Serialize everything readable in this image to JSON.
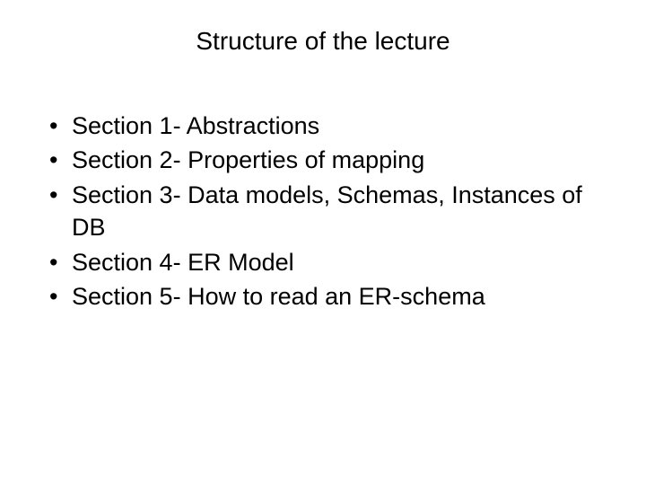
{
  "slide": {
    "title": "Structure of the lecture",
    "title_fontsize": 28,
    "title_align": "center",
    "bullets": [
      "Section 1- Abstractions",
      "Section 2- Properties of mapping",
      "Section 3- Data models, Schemas, Instances of DB",
      "Section 4- ER Model",
      "Section 5- How to read an ER-schema"
    ],
    "bullet_fontsize": 27,
    "background_color": "#ffffff",
    "text_color": "#000000",
    "font_family": "Arial"
  }
}
